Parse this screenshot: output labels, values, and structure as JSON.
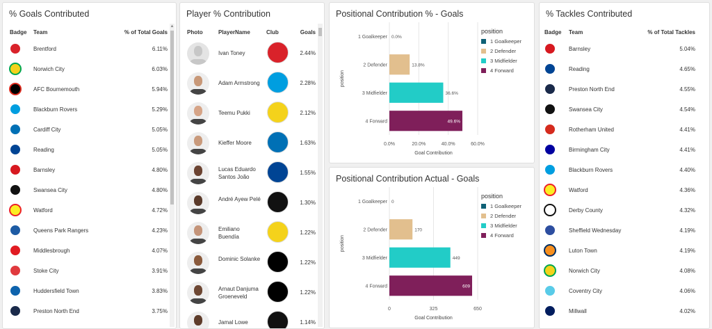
{
  "goals_card": {
    "title": "% Goals Contributed",
    "headers": {
      "badge": "Badge",
      "team": "Team",
      "value": "% of Total Goals"
    },
    "rows": [
      {
        "team": "Brentford",
        "value": "6.11%",
        "color": "#d9222a",
        "accent": "#ffffff"
      },
      {
        "team": "Norwich City",
        "value": "6.03%",
        "color": "#f4d21b",
        "accent": "#00a650"
      },
      {
        "team": "AFC Bournemouth",
        "value": "5.94%",
        "color": "#000000",
        "accent": "#da291c"
      },
      {
        "team": "Blackburn Rovers",
        "value": "5.29%",
        "color": "#009ee0",
        "accent": "#ffffff"
      },
      {
        "team": "Cardiff City",
        "value": "5.05%",
        "color": "#0070b5",
        "accent": "#ffffff"
      },
      {
        "team": "Reading",
        "value": "5.05%",
        "color": "#004494",
        "accent": "#ffffff"
      },
      {
        "team": "Barnsley",
        "value": "4.80%",
        "color": "#d71920",
        "accent": "#ffffff"
      },
      {
        "team": "Swansea City",
        "value": "4.80%",
        "color": "#111111",
        "accent": "#ffffff"
      },
      {
        "team": "Watford",
        "value": "4.72%",
        "color": "#fbee23",
        "accent": "#ed2127"
      },
      {
        "team": "Queens Park Rangers",
        "value": "4.23%",
        "color": "#1d5ba4",
        "accent": "#ffffff"
      },
      {
        "team": "Middlesbrough",
        "value": "4.07%",
        "color": "#e11b22",
        "accent": "#ffffff"
      },
      {
        "team": "Stoke City",
        "value": "3.91%",
        "color": "#e03a3e",
        "accent": "#ffffff"
      },
      {
        "team": "Huddersfield Town",
        "value": "3.83%",
        "color": "#0e63ad",
        "accent": "#ffffff"
      },
      {
        "team": "Preston North End",
        "value": "3.75%",
        "color": "#1a2a4a",
        "accent": "#ffffff"
      }
    ]
  },
  "player_card": {
    "title": "Player % Contribution",
    "headers": {
      "photo": "Photo",
      "name": "PlayerName",
      "club": "Club",
      "value": "Goals"
    },
    "rows": [
      {
        "name": "Ivan Toney",
        "value": "2.44%",
        "club_color": "#d9222a",
        "skin": "#dcdcdc",
        "placeholder": true
      },
      {
        "name": "Adam Armstrong",
        "value": "2.28%",
        "club_color": "#009ee0",
        "skin": "#c89878"
      },
      {
        "name": "Teemu Pukki",
        "value": "2.12%",
        "club_color": "#f4d21b",
        "skin": "#d6a487"
      },
      {
        "name": "Kieffer Moore",
        "value": "1.63%",
        "club_color": "#0070b5",
        "skin": "#c99a7c"
      },
      {
        "name": "Lucas Eduardo Santos João",
        "value": "1.55%",
        "club_color": "#004494",
        "skin": "#6b4331"
      },
      {
        "name": "André Ayew Pelé",
        "value": "1.30%",
        "club_color": "#111111",
        "skin": "#5a3a2a"
      },
      {
        "name": "Emiliano Buendía",
        "value": "1.22%",
        "club_color": "#f4d21b",
        "skin": "#c49479"
      },
      {
        "name": "Dominic Solanke",
        "value": "1.22%",
        "club_color": "#000000",
        "skin": "#8a5a3c"
      },
      {
        "name": "Arnaut Danjuma Groeneveld",
        "value": "1.22%",
        "club_color": "#000000",
        "skin": "#6d4733"
      },
      {
        "name": "Jamal Lowe",
        "value": "1.14%",
        "club_color": "#111111",
        "skin": "#5e3c2a"
      }
    ]
  },
  "pct_chart": {
    "title": "Positional Contribution % - Goals",
    "chart_data": {
      "type": "bar",
      "orientation": "horizontal",
      "title": "Positional Contribution % - Goals",
      "xlabel": "Goal Contribution",
      "ylabel": "position",
      "categories": [
        "1 Goalkeeper",
        "2 Defender",
        "3 Midfielder",
        "4 Forward"
      ],
      "values": [
        0.0,
        13.8,
        36.6,
        49.6
      ],
      "labels": [
        "0.0%",
        "13.8%",
        "36.6%",
        "49.6%"
      ],
      "xlim": [
        0,
        60
      ],
      "ticks": [
        "0.0%",
        "20.0%",
        "40.0%",
        "60.0%"
      ],
      "tick_values": [
        0,
        20,
        40,
        60
      ],
      "legend_title": "position",
      "legend": [
        "1 Goalkeeper",
        "2 Defender",
        "3 Midfielder",
        "4 Forward"
      ],
      "colors": [
        "#0f6176",
        "#e2bf8e",
        "#22ccc7",
        "#7f1f5a"
      ]
    }
  },
  "actual_chart": {
    "title": "Positional Contribution Actual - Goals",
    "chart_data": {
      "type": "bar",
      "orientation": "horizontal",
      "title": "Positional Contribution Actual - Goals",
      "xlabel": "Goal Contribution",
      "ylabel": "position",
      "categories": [
        "1 Goalkeeper",
        "2 Defender",
        "3 Midfielder",
        "4 Forward"
      ],
      "values": [
        0,
        170,
        449,
        609
      ],
      "labels": [
        "0",
        "170",
        "449",
        "609"
      ],
      "xlim": [
        0,
        650
      ],
      "ticks": [
        "0",
        "325",
        "650"
      ],
      "tick_values": [
        0,
        325,
        650
      ],
      "legend_title": "position",
      "legend": [
        "1 Goalkeeper",
        "2 Defender",
        "3 Midfielder",
        "4 Forward"
      ],
      "colors": [
        "#0f6176",
        "#e2bf8e",
        "#22ccc7",
        "#7f1f5a"
      ]
    }
  },
  "tackles_card": {
    "title": "% Tackles Contributed",
    "headers": {
      "badge": "Badge",
      "team": "Team",
      "value": "% of Total Tackles"
    },
    "rows": [
      {
        "team": "Barnsley",
        "value": "5.04%",
        "color": "#d71920",
        "accent": "#ffffff"
      },
      {
        "team": "Reading",
        "value": "4.65%",
        "color": "#004494",
        "accent": "#ffffff"
      },
      {
        "team": "Preston North End",
        "value": "4.55%",
        "color": "#1a2a4a",
        "accent": "#ffffff"
      },
      {
        "team": "Swansea City",
        "value": "4.54%",
        "color": "#111111",
        "accent": "#ffffff"
      },
      {
        "team": "Rotherham United",
        "value": "4.41%",
        "color": "#d52b1e",
        "accent": "#ffffff"
      },
      {
        "team": "Birmingham City",
        "value": "4.41%",
        "color": "#0000a0",
        "accent": "#ffffff"
      },
      {
        "team": "Blackburn Rovers",
        "value": "4.40%",
        "color": "#009ee0",
        "accent": "#ffffff"
      },
      {
        "team": "Watford",
        "value": "4.36%",
        "color": "#fbee23",
        "accent": "#ed2127"
      },
      {
        "team": "Derby County",
        "value": "4.32%",
        "color": "#ffffff",
        "accent": "#111111"
      },
      {
        "team": "Sheffield Wednesday",
        "value": "4.19%",
        "color": "#2d4ea0",
        "accent": "#ffffff"
      },
      {
        "team": "Luton Town",
        "value": "4.19%",
        "color": "#f78f1e",
        "accent": "#002d62"
      },
      {
        "team": "Norwich City",
        "value": "4.08%",
        "color": "#f4d21b",
        "accent": "#00a650"
      },
      {
        "team": "Coventry City",
        "value": "4.06%",
        "color": "#59cbe8",
        "accent": "#ffffff"
      },
      {
        "team": "Millwall",
        "value": "4.02%",
        "color": "#001d5e",
        "accent": "#ffffff"
      }
    ]
  }
}
